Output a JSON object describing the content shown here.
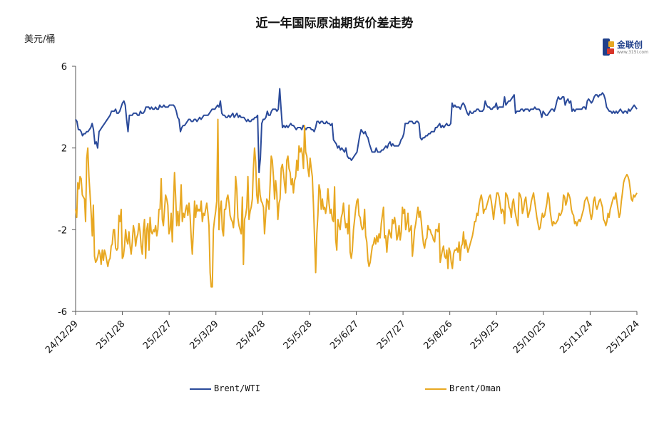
{
  "title": "近一年国际原油期货价差走势",
  "unit_label": "美元/桶",
  "logo": {
    "name": "金联创",
    "sub": "www.315i.com"
  },
  "chart_data": {
    "type": "line",
    "title": "近一年国际原油期货价差走势",
    "ylabel": "美元/桶",
    "ylim": [
      -6,
      6
    ],
    "yticks": [
      -6,
      -2,
      2,
      6
    ],
    "x_tick_labels": [
      "24/12/29",
      "25/1/28",
      "25/2/27",
      "25/3/29",
      "25/4/28",
      "25/5/28",
      "25/6/27",
      "25/7/27",
      "25/8/26",
      "25/9/25",
      "25/10/25",
      "25/11/24",
      "25/12/24"
    ],
    "grid": false,
    "legend_position": "bottom",
    "series": [
      {
        "name": "Brent/WTI",
        "color": "#2a4a9a",
        "values": [
          3.4,
          3.3,
          2.9,
          2.9,
          2.8,
          2.6,
          2.7,
          2.7,
          2.8,
          2.8,
          2.9,
          3.0,
          3.2,
          2.9,
          2.2,
          2.3,
          2.0,
          2.8,
          2.9,
          3.0,
          3.1,
          3.2,
          3.3,
          3.4,
          3.5,
          3.6,
          3.8,
          3.8,
          3.8,
          3.9,
          3.7,
          3.7,
          3.8,
          4.0,
          4.2,
          4.3,
          4.1,
          3.4,
          2.8,
          3.6,
          3.6,
          3.6,
          3.7,
          3.7,
          3.7,
          3.6,
          3.6,
          3.8,
          3.7,
          3.7,
          3.8,
          4.0,
          4.0,
          4.0,
          3.9,
          4.0,
          3.9,
          3.9,
          4.0,
          3.9,
          3.9,
          4.1,
          4.0,
          4.0,
          4.1,
          4.0,
          4.0,
          4.0,
          4.1,
          4.1,
          4.1,
          4.1,
          4.0,
          3.8,
          3.5,
          3.4,
          2.8,
          3.0,
          3.1,
          3.1,
          3.2,
          3.3,
          3.4,
          3.4,
          3.3,
          3.3,
          3.4,
          3.4,
          3.3,
          3.4,
          3.5,
          3.4,
          3.5,
          3.6,
          3.6,
          3.6,
          3.6,
          3.7,
          3.8,
          3.9,
          3.9,
          3.9,
          4.0,
          4.1,
          4.0,
          4.3,
          3.7,
          3.6,
          3.6,
          3.5,
          3.5,
          3.6,
          3.5,
          3.6,
          3.7,
          3.5,
          3.6,
          3.7,
          3.5,
          3.6,
          3.5,
          3.5,
          3.5,
          3.4,
          3.3,
          3.4,
          3.3,
          3.3,
          3.4,
          3.4,
          3.5,
          3.5,
          3.6,
          0.8,
          1.5,
          3.2,
          3.4,
          3.4,
          3.5,
          3.8,
          3.6,
          3.6,
          3.8,
          3.9,
          3.9,
          3.9,
          3.8,
          3.9,
          4.9,
          3.9,
          3.0,
          3.1,
          3.0,
          3.1,
          3.0,
          3.1,
          3.2,
          3.1,
          3.1,
          3.0,
          2.9,
          3.0,
          3.0,
          3.0,
          2.9,
          3.1,
          3.0,
          2.9,
          3.0,
          3.0,
          3.0,
          2.9,
          2.9,
          2.8,
          3.0,
          3.3,
          3.3,
          3.2,
          3.3,
          3.3,
          3.2,
          3.2,
          3.3,
          3.2,
          3.2,
          3.1,
          3.2,
          2.4,
          2.3,
          2.2,
          2.0,
          2.1,
          1.9,
          2.0,
          1.9,
          1.8,
          2.0,
          1.6,
          1.5,
          1.5,
          1.4,
          1.5,
          1.6,
          1.7,
          1.8,
          2.2,
          2.6,
          2.9,
          2.8,
          2.7,
          2.8,
          2.6,
          2.5,
          2.2,
          2.0,
          1.8,
          1.8,
          1.8,
          2.0,
          1.8,
          1.8,
          1.8,
          1.9,
          1.9,
          2.0,
          2.1,
          2.0,
          2.2,
          2.3,
          2.1,
          2.2,
          2.1,
          2.1,
          2.1,
          2.1,
          2.2,
          2.4,
          2.5,
          2.7,
          3.2,
          3.2,
          3.2,
          3.3,
          3.3,
          3.3,
          3.2,
          3.2,
          3.3,
          3.3,
          3.2,
          2.5,
          2.4,
          2.5,
          2.5,
          2.6,
          2.6,
          2.7,
          2.7,
          2.8,
          2.8,
          2.8,
          3.0,
          3.0,
          3.1,
          3.2,
          3.0,
          3.1,
          3.0,
          3.1,
          3.2,
          3.1,
          3.1,
          3.2,
          4.2,
          4.0,
          4.1,
          4.0,
          4.0,
          4.0,
          3.9,
          4.1,
          4.2,
          4.1,
          3.9,
          3.7,
          3.6,
          3.8,
          3.7,
          3.7,
          3.8,
          3.8,
          3.9,
          3.9,
          3.8,
          3.8,
          3.8,
          3.9,
          4.3,
          4.1,
          4.0,
          4.0,
          3.9,
          3.9,
          4.0,
          4.0,
          4.2,
          3.9,
          4.0,
          4.0,
          4.0,
          4.0,
          4.5,
          4.1,
          4.2,
          4.3,
          4.3,
          4.4,
          4.5,
          4.6,
          3.7,
          3.8,
          3.8,
          3.8,
          3.9,
          3.9,
          3.8,
          3.9,
          3.9,
          3.9,
          3.8,
          3.9,
          3.9,
          3.9,
          4.0,
          3.9,
          3.9,
          3.9,
          3.8,
          3.5,
          3.8,
          3.7,
          3.6,
          3.6,
          3.7,
          3.8,
          3.9,
          3.9,
          3.8,
          4.0,
          4.3,
          4.5,
          4.4,
          4.4,
          4.5,
          4.5,
          4.1,
          4.3,
          4.4,
          4.2,
          4.3,
          3.8,
          3.9,
          3.8,
          3.9,
          3.9,
          3.9,
          3.9,
          3.9,
          4.0,
          4.0,
          3.9,
          4.3,
          4.4,
          4.3,
          4.2,
          4.3,
          4.5,
          4.6,
          4.6,
          4.5,
          4.6,
          4.6,
          4.7,
          4.6,
          4.4,
          4.0,
          3.9,
          3.8,
          3.8,
          3.7,
          3.8,
          3.7,
          3.8,
          3.7,
          3.8,
          3.9,
          3.8,
          3.7,
          3.8,
          3.8,
          3.7,
          3.9,
          3.8,
          3.9,
          4.0,
          4.1,
          4.0,
          3.9
        ]
      },
      {
        "name": "Brent/Oman",
        "color": "#e8a822",
        "values": [
          -1.0,
          -1.4,
          0.3,
          0.0,
          0.6,
          0.5,
          -0.3,
          -0.4,
          -0.5,
          -1.6,
          1.5,
          2.0,
          0.6,
          -0.3,
          -1.2,
          -2.3,
          -0.8,
          -3.3,
          -3.6,
          -3.5,
          -3.3,
          -3.0,
          -3.2,
          -3.7,
          -3.0,
          -3.5,
          -3.0,
          -3.2,
          -3.5,
          -3.8,
          -3.5,
          -3.4,
          -2.8,
          -2.7,
          -2.0,
          -2.0,
          -2.9,
          -3.0,
          -2.9,
          -1.3,
          -1.6,
          -1.0,
          -3.4,
          -3.3,
          -2.8,
          -2.0,
          -2.5,
          -2.7,
          -2.1,
          -2.8,
          -3.2,
          -2.6,
          -1.8,
          -2.1,
          -2.8,
          -2.4,
          -2.2,
          -1.7,
          -2.1,
          -2.8,
          -3.2,
          -2.0,
          -1.5,
          -3.4,
          -2.0,
          -1.7,
          -3.0,
          -1.4,
          -2.1,
          -2.2,
          -2.0,
          -2.1,
          -1.8,
          -2.3,
          -2.0,
          -1.0,
          -1.0,
          0.5,
          -1.5,
          -1.8,
          -1.0,
          -0.3,
          -0.5,
          -0.8,
          -2.2,
          -2.0,
          -1.2,
          -2.6,
          -0.8,
          0.8,
          -0.4,
          -1.8,
          -1.1,
          -1.8,
          -1.0,
          0.2,
          -1.6,
          -1.2,
          -1.4,
          -1.0,
          -0.8,
          -1.3,
          -0.7,
          -1.3,
          -2.4,
          -3.2,
          -2.0,
          -0.6,
          -1.4,
          -0.8,
          -1.1,
          -1.0,
          -1.1,
          -0.6,
          -1.6,
          -1.2,
          -1.3,
          -1.0,
          -0.7,
          -1.2,
          -1.8,
          -4.1,
          -4.8,
          -4.8,
          -2.0,
          -1.5,
          -1.1,
          -0.6,
          3.4,
          -2.0,
          -1.0,
          -0.6,
          -2.0,
          -2.3,
          -1.0,
          -1.0,
          -0.5,
          -0.3,
          -0.7,
          -1.3,
          -1.5,
          -1.6,
          -1.9,
          -1.2,
          0.6,
          0.0,
          -1.4,
          -1.8,
          -2.0,
          -2.2,
          -0.4,
          -3.7,
          -1.5,
          -1.3,
          -0.9,
          0.6,
          -1.5,
          -1.1,
          -0.9,
          -0.5,
          1.0,
          2.0,
          1.3,
          -0.3,
          -0.7,
          0.5,
          -0.3,
          -0.6,
          -0.7,
          -0.9,
          -2.2,
          -1.3,
          -0.5,
          -0.6,
          -1.0,
          0.2,
          1.6,
          1.4,
          0.6,
          -0.5,
          0.4,
          -0.2,
          -1.5,
          -0.7,
          -0.5,
          1.0,
          1.2,
          0.8,
          0.2,
          -0.2,
          1.4,
          1.6,
          1.0,
          0.8,
          0.2,
          0.5,
          -0.2,
          0.4,
          0.6,
          1.4,
          0.9,
          2.1,
          1.8,
          2.0,
          1.7,
          1.0,
          3.1,
          1.8,
          1.6,
          1.0,
          0.6,
          1.5,
          1.0,
          0.6,
          -0.8,
          -2.5,
          -4.1,
          -2.2,
          -1.3,
          0.2,
          -0.1,
          -1.0,
          -0.5,
          -1.0,
          -0.9,
          -1.2,
          -0.8,
          0.0,
          -0.7,
          -1.2,
          -1.0,
          -1.5,
          -1.6,
          0.1,
          -2.5,
          -3.0,
          -1.5,
          -1.8,
          -2.0,
          -1.4,
          -1.2,
          -0.7,
          -1.4,
          -1.9,
          -1.7,
          -2.2,
          -0.8,
          -3.1,
          -3.4,
          -3.0,
          -2.0,
          -1.5,
          -1.0,
          -0.6,
          -0.5,
          -1.3,
          -1.4,
          -1.8,
          -2.0,
          -1.9,
          -1.0,
          -2.3,
          -2.6,
          -3.5,
          -3.8,
          -3.6,
          -3.2,
          -2.8,
          -2.7,
          -2.4,
          -2.7,
          -2.3,
          -2.6,
          -2.2,
          -2.4,
          -1.7,
          -1.3,
          -0.9,
          -2.4,
          -2.3,
          -3.1,
          -2.4,
          -2.0,
          -2.2,
          -2.4,
          -1.5,
          -1.7,
          -1.4,
          -1.8,
          -2.5,
          -2.3,
          -1.8,
          -2.5,
          -2.1,
          -0.9,
          -1.2,
          -1.0,
          -2.0,
          -1.7,
          -1.2,
          -2.1,
          -2.0,
          -1.8,
          -3.3,
          -2.7,
          -2.0,
          -1.7,
          -1.3,
          -0.9,
          -1.4,
          -1.1,
          -1.6,
          -2.2,
          -2.7,
          -2.9,
          -2.5,
          -2.4,
          -1.8,
          -2.0,
          -2.0,
          -2.2,
          -2.3,
          -2.5,
          -2.6,
          -2.0,
          -2.0,
          -2.1,
          -1.7,
          -3.6,
          -3.3,
          -3.0,
          -2.8,
          -3.3,
          -3.4,
          -3.0,
          -3.9,
          -2.9,
          -3.1,
          -3.6,
          -3.9,
          -3.2,
          -3.0,
          -3.0,
          -2.9,
          -3.1,
          -2.6,
          -3.5,
          -2.8,
          -2.7,
          -2.1,
          -2.9,
          -2.5,
          -2.8,
          -3.1,
          -2.9,
          -2.7,
          -2.5,
          -2.3,
          -2.0,
          -1.6,
          -1.6,
          -1.2,
          -1.3,
          -0.8,
          -0.5,
          -0.3,
          -0.6,
          -1.2,
          -1.0,
          -1.0,
          -0.8,
          -0.6,
          -0.4,
          -0.3,
          -0.6,
          -1.0,
          -1.5,
          -1.0,
          -0.6,
          -0.2,
          -0.2,
          -0.4,
          -0.8,
          -1.2,
          -1.0,
          -1.1,
          -1.7,
          -0.2,
          -0.3,
          -0.5,
          -0.9,
          -1.0,
          -1.4,
          -0.7,
          -0.5,
          -1.0,
          -1.3,
          -1.6,
          -1.8,
          -0.2,
          -0.3,
          -0.5,
          -1.2,
          -1.0,
          -0.6,
          -0.4,
          -0.9,
          -1.4,
          -1.2,
          -1.0,
          -0.6,
          -0.4,
          -0.2,
          -0.6,
          -1.0,
          -1.4,
          -1.7,
          -2.0,
          -1.9,
          -1.5,
          -1.2,
          -1.4,
          -1.3,
          -1.0,
          -0.7,
          -0.2,
          -0.5,
          -1.1,
          -1.5,
          -1.8,
          -1.6,
          -1.7,
          -1.7,
          -1.6,
          -1.5,
          -1.2,
          -1.3,
          -1.2,
          -1.0,
          -0.3,
          -0.4,
          -0.8,
          -0.6,
          -0.2,
          -0.3,
          -0.5,
          -1.0,
          -1.2,
          -1.3,
          -1.7,
          -1.6,
          -1.8,
          -1.6,
          -1.5,
          -1.6,
          -1.4,
          -1.2,
          -1.0,
          -0.6,
          -0.5,
          -0.4,
          -0.6,
          -0.8,
          -1.2,
          -1.5,
          -1.2,
          -0.6,
          -0.4,
          -0.8,
          -1.0,
          -0.8,
          -0.6,
          -0.5,
          -0.7,
          -0.9,
          -1.5,
          -1.6,
          -1.8,
          -1.6,
          -1.2,
          -1.4,
          -1.0,
          -0.8,
          -0.6,
          -0.4,
          -0.5,
          -0.2,
          -0.6,
          -1.0,
          -1.4,
          -1.2,
          -0.6,
          -0.2,
          0.3,
          0.5,
          0.6,
          0.7,
          0.6,
          0.4,
          0.0,
          -0.5,
          -0.6,
          -0.3,
          -0.4,
          -0.3,
          -0.2
        ]
      }
    ]
  }
}
